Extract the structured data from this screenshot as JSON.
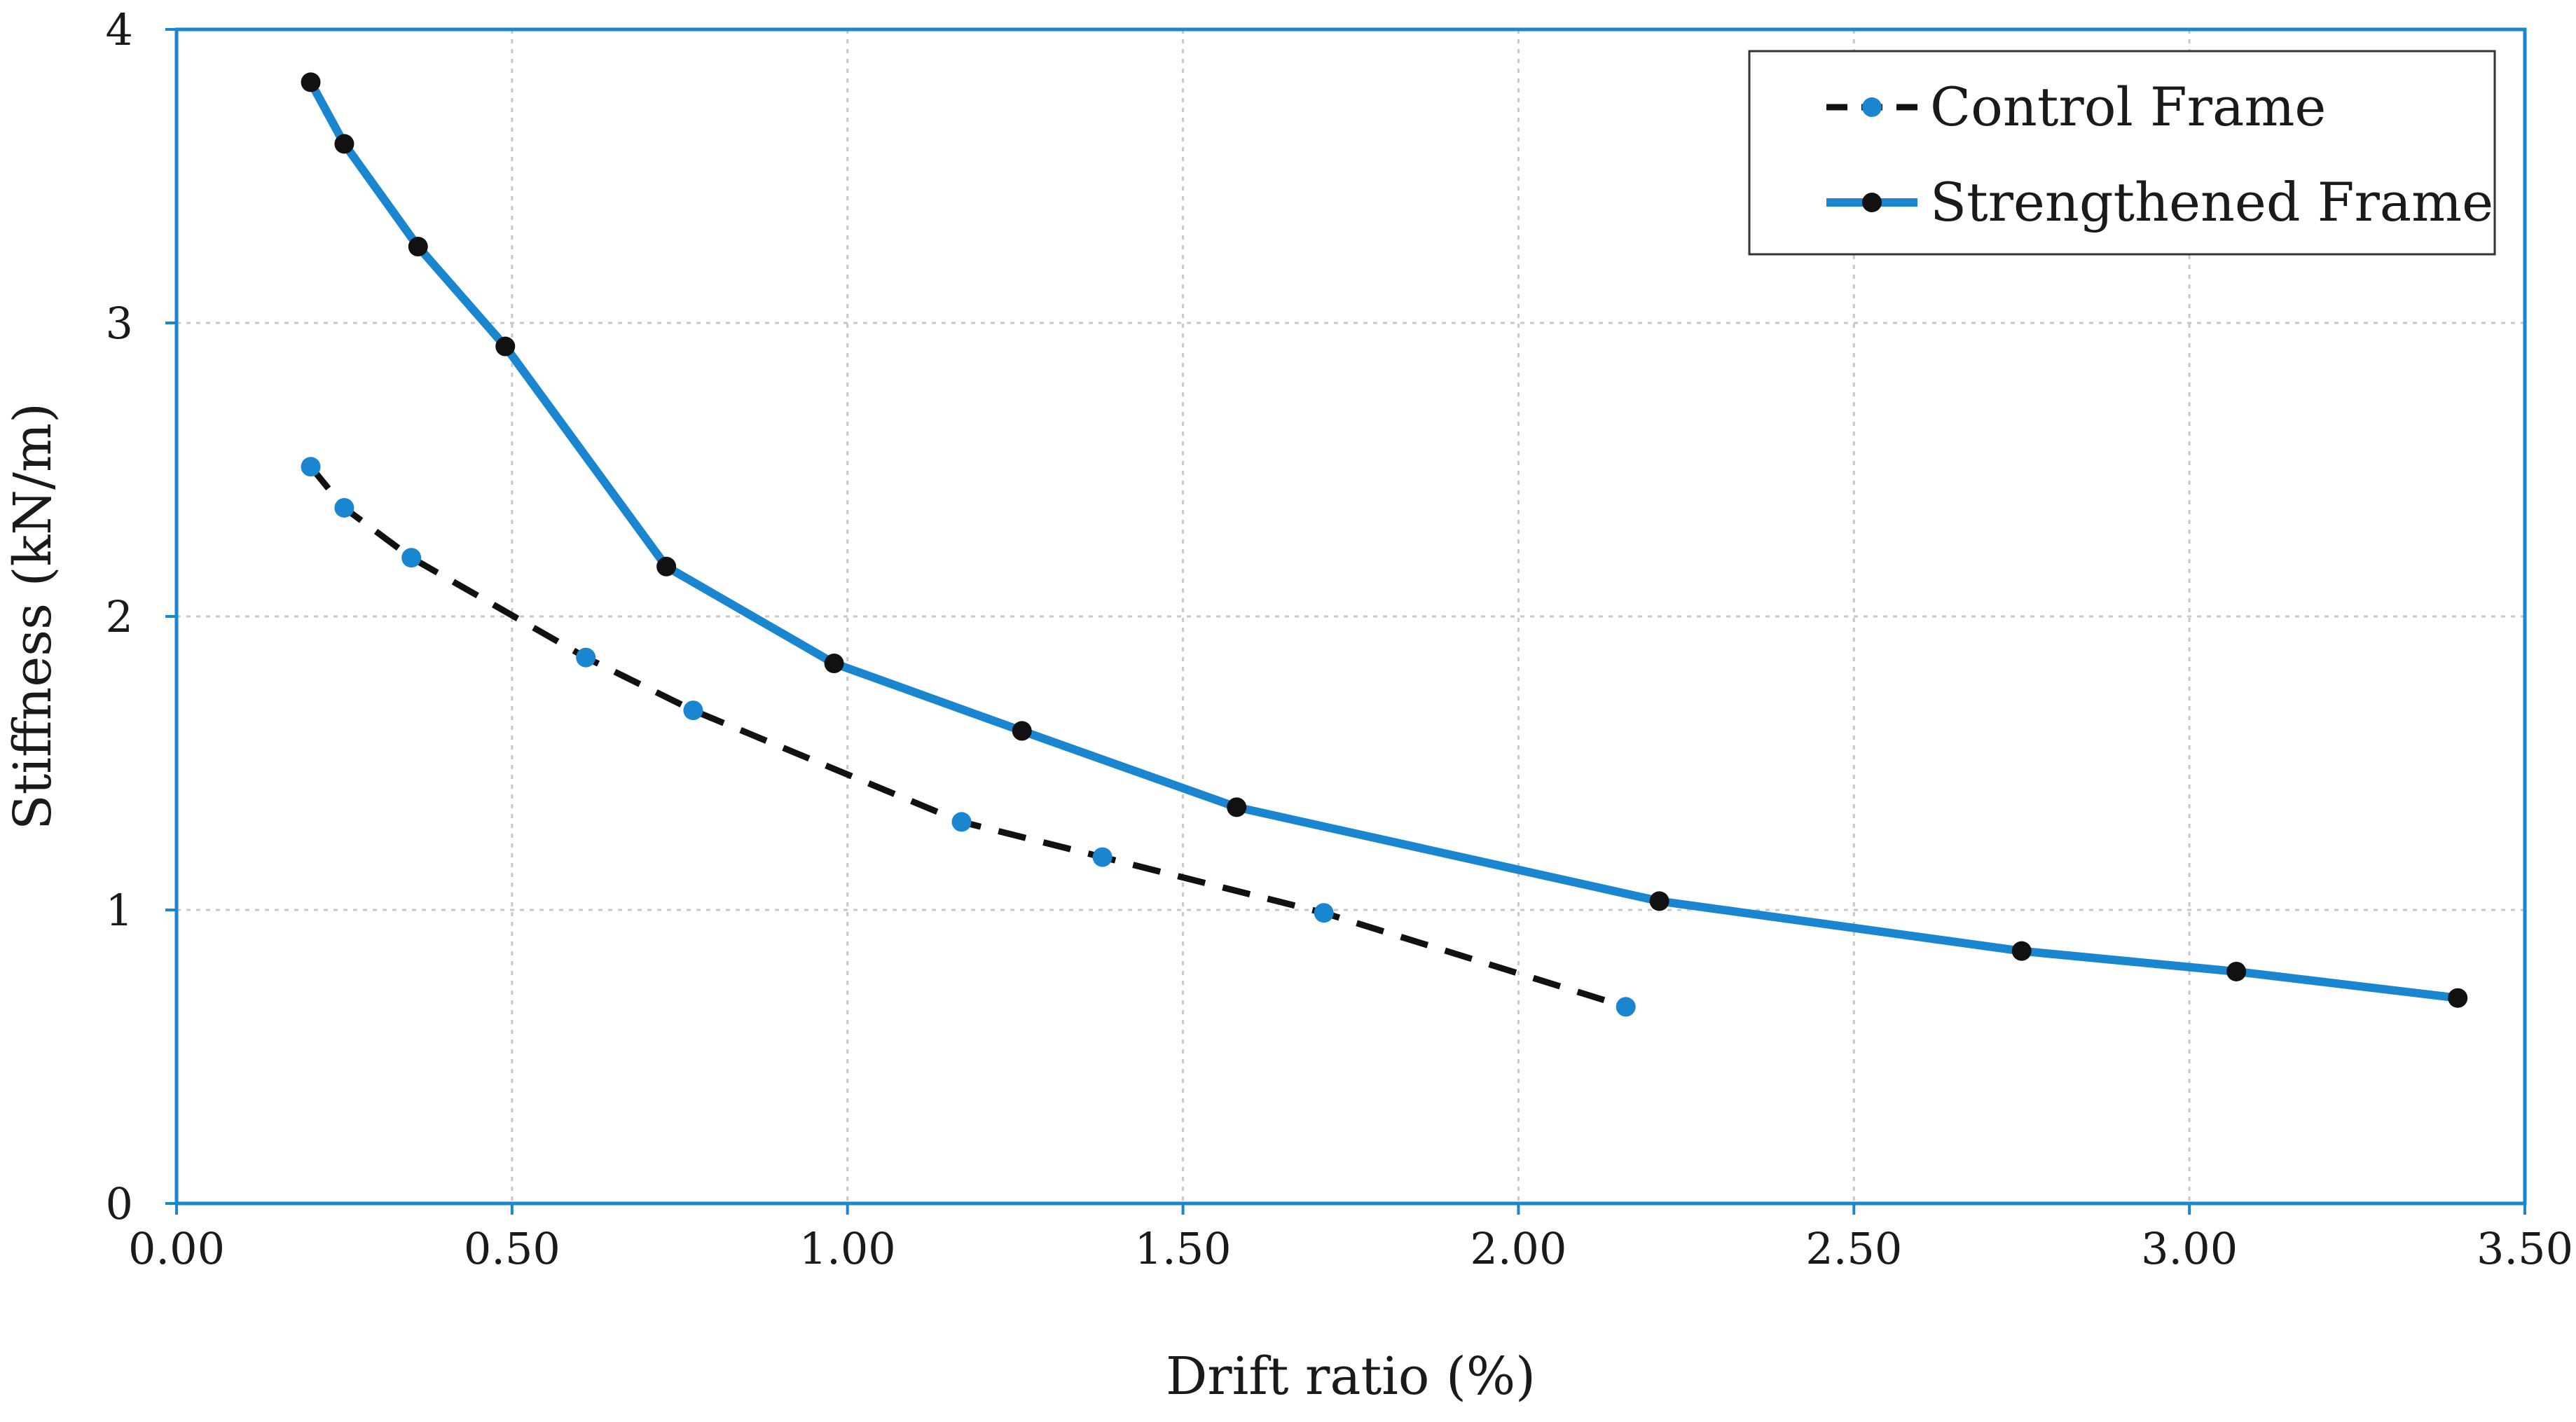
{
  "chart_data": {
    "type": "line",
    "title": "",
    "xlabel": "Drift ratio (%)",
    "ylabel": "Stiffness (kN/m)",
    "xlim": [
      0,
      3.5
    ],
    "ylim": [
      0,
      4
    ],
    "xticks": [
      "0.00",
      "0.50",
      "1.00",
      "1.50",
      "2.00",
      "2.50",
      "3.00",
      "3.50"
    ],
    "yticks": [
      "0",
      "1",
      "2",
      "3",
      "4"
    ],
    "grid": true,
    "legend_position": "top-right",
    "series": [
      {
        "name": "Control Frame",
        "line_style": "dashed",
        "line_color": "#111111",
        "marker_color": "#1a86d0",
        "x": [
          0.2,
          0.25,
          0.35,
          0.61,
          0.77,
          1.17,
          1.38,
          1.71,
          2.16
        ],
        "y": [
          2.51,
          2.37,
          2.2,
          1.86,
          1.68,
          1.3,
          1.18,
          0.99,
          0.67
        ]
      },
      {
        "name": "Strengthened Frame",
        "line_style": "solid",
        "line_color": "#1a86d0",
        "marker_color": "#111111",
        "x": [
          0.2,
          0.25,
          0.36,
          0.49,
          0.73,
          0.98,
          1.26,
          1.58,
          2.21,
          2.75,
          3.07,
          3.4
        ],
        "y": [
          3.82,
          3.61,
          3.26,
          2.92,
          2.17,
          1.84,
          1.61,
          1.35,
          1.03,
          0.86,
          0.79,
          0.7
        ]
      }
    ]
  }
}
